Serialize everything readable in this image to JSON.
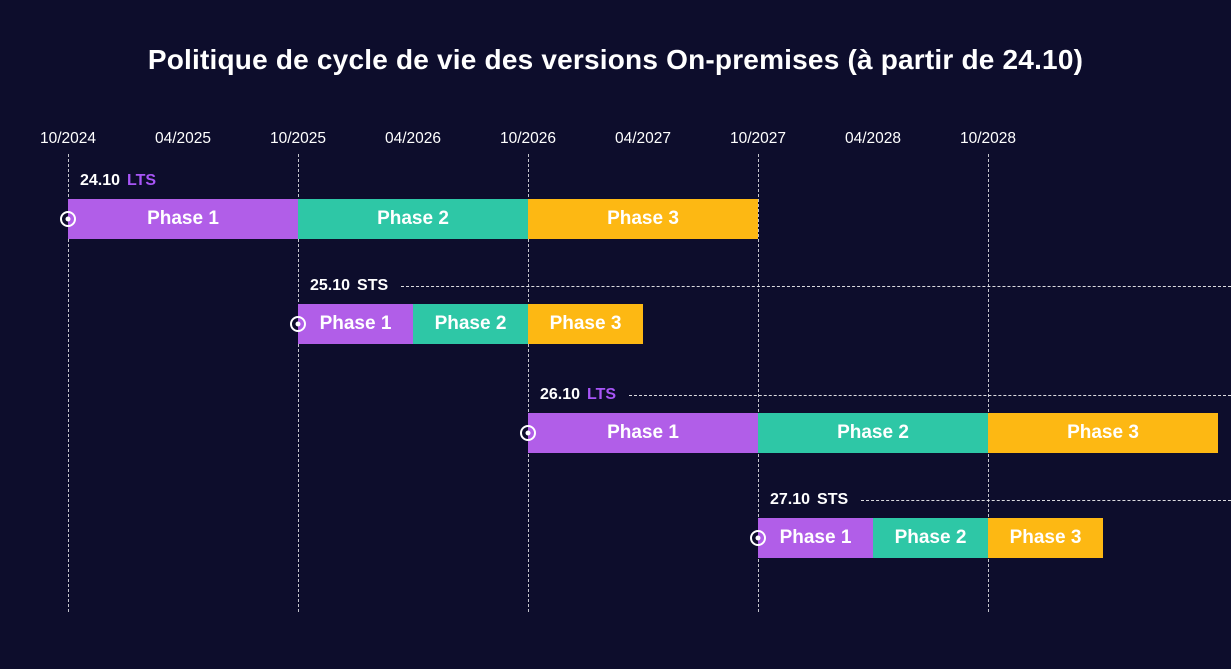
{
  "chart_data": {
    "type": "gantt",
    "title": "Politique de cycle de vie des versions On-premises (à partir de 24.10)",
    "time_axis": {
      "ticks": [
        "10/2024",
        "04/2025",
        "10/2025",
        "04/2026",
        "10/2026",
        "04/2027",
        "10/2027",
        "04/2028",
        "10/2028"
      ],
      "gridline_dates": [
        "10/2024",
        "10/2025",
        "10/2026",
        "10/2027",
        "10/2028"
      ],
      "visible_range": [
        "10/2024",
        "10/2029"
      ],
      "tick_interval_months": 6
    },
    "phase_colors": {
      "Phase 1": "#b15ee8",
      "Phase 2": "#2ec7a6",
      "Phase 3": "#fdb813"
    },
    "releases": [
      {
        "version": "24.10",
        "channel": "LTS",
        "start": "10/2024",
        "trailing_dashed_line": false,
        "phases": [
          {
            "label": "Phase 1",
            "start": "10/2024",
            "end": "10/2025",
            "duration_months": 12
          },
          {
            "label": "Phase 2",
            "start": "10/2025",
            "end": "10/2026",
            "duration_months": 12
          },
          {
            "label": "Phase 3",
            "start": "10/2026",
            "end": "10/2027",
            "duration_months": 12
          }
        ]
      },
      {
        "version": "25.10",
        "channel": "STS",
        "start": "10/2025",
        "trailing_dashed_line": true,
        "phases": [
          {
            "label": "Phase 1",
            "start": "10/2025",
            "end": "04/2026",
            "duration_months": 6
          },
          {
            "label": "Phase 2",
            "start": "04/2026",
            "end": "10/2026",
            "duration_months": 6
          },
          {
            "label": "Phase 3",
            "start": "10/2026",
            "end": "04/2027",
            "duration_months": 6
          }
        ]
      },
      {
        "version": "26.10",
        "channel": "LTS",
        "start": "10/2026",
        "trailing_dashed_line": true,
        "phases": [
          {
            "label": "Phase 1",
            "start": "10/2026",
            "end": "10/2027",
            "duration_months": 12
          },
          {
            "label": "Phase 2",
            "start": "10/2027",
            "end": "10/2028",
            "duration_months": 12
          },
          {
            "label": "Phase 3",
            "start": "10/2028",
            "end": "10/2029",
            "duration_months": 12
          }
        ]
      },
      {
        "version": "27.10",
        "channel": "STS",
        "start": "10/2027",
        "trailing_dashed_line": true,
        "phases": [
          {
            "label": "Phase 1",
            "start": "10/2027",
            "end": "04/2028",
            "duration_months": 6
          },
          {
            "label": "Phase 2",
            "start": "04/2028",
            "end": "10/2028",
            "duration_months": 6
          },
          {
            "label": "Phase 3",
            "start": "10/2028",
            "end": "04/2029",
            "duration_months": 6
          }
        ]
      }
    ]
  },
  "colors": {
    "background": "#0d0d2c",
    "title_text": "#ffffff",
    "axis_text": "#ffffff",
    "grid_line": "#ffffff",
    "lts_accent": "#a855f7",
    "sts_text": "#ffffff",
    "phase1_purple": "#b15ee8",
    "phase2_teal": "#2ec7a6",
    "phase3_amber": "#fdb813",
    "bar_text": "#ffffff"
  }
}
